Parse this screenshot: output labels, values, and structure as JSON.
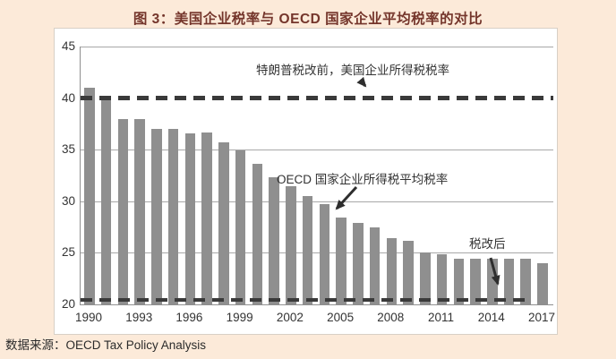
{
  "page": {
    "source_note": "数据来源：OECD Tax Policy Analysis"
  },
  "colors": {
    "background": "#fcead9",
    "panel": "#ffffff",
    "title_text": "#74352b",
    "bar": "#8f8f8f",
    "dashed_line": "#3a3a3a",
    "gridline": "#a8a8a8",
    "axis_text": "#333333"
  },
  "chart_data": {
    "type": "bar",
    "title": "图 3：美国企业税率与 OECD 国家企业平均税率的对比",
    "series_name": "OECD 国家企业所得税平均税率",
    "categories": [
      "1990",
      "1991",
      "1992",
      "1993",
      "1994",
      "1995",
      "1996",
      "1997",
      "1998",
      "1999",
      "2000",
      "2001",
      "2002",
      "2003",
      "2004",
      "2005",
      "2006",
      "2007",
      "2008",
      "2009",
      "2010",
      "2011",
      "2012",
      "2013",
      "2014",
      "2015",
      "2016",
      "2017"
    ],
    "values": [
      41.0,
      40.0,
      38.0,
      38.0,
      37.0,
      37.0,
      36.6,
      36.7,
      35.7,
      34.9,
      33.6,
      32.3,
      31.5,
      30.5,
      29.7,
      28.4,
      27.9,
      27.5,
      26.4,
      26.2,
      25.0,
      24.9,
      24.4,
      24.4,
      24.4,
      24.4,
      24.4,
      24.0
    ],
    "x_tick_labels": [
      "1990",
      "1993",
      "1996",
      "1999",
      "2002",
      "2005",
      "2008",
      "2011",
      "2014",
      "2017"
    ],
    "y_ticks": [
      20,
      25,
      30,
      35,
      40,
      45
    ],
    "ylim": [
      20,
      45
    ],
    "grid": "horizontal",
    "legend_position": "none",
    "reference_lines": [
      {
        "y": 40,
        "style": "dashed-bold",
        "x_extent": 1.0,
        "label": "特朗普税改前，美国企业所得税税率"
      },
      {
        "y": 20.4,
        "style": "dashed",
        "x_extent": 0.945,
        "label": "税改后"
      }
    ],
    "annotations": [
      {
        "text": "特朗普税改前，美国企业所得税税率"
      },
      {
        "text": "OECD 国家企业所得税平均税率"
      },
      {
        "text": "税改后"
      }
    ]
  }
}
